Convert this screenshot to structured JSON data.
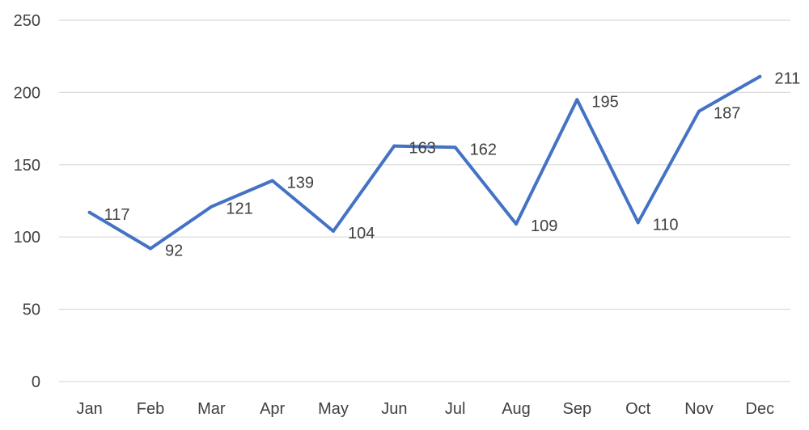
{
  "chart_data": {
    "type": "line",
    "title": "",
    "xlabel": "",
    "ylabel": "",
    "categories": [
      "Jan",
      "Feb",
      "Mar",
      "Apr",
      "May",
      "Jun",
      "Jul",
      "Aug",
      "Sep",
      "Oct",
      "Nov",
      "Dec"
    ],
    "series": [
      {
        "values": [
          117,
          92,
          121,
          139,
          104,
          163,
          162,
          109,
          195,
          110,
          187,
          211
        ],
        "color": "#4472c4"
      }
    ],
    "ylim": [
      0,
      250
    ],
    "yticks": [
      0,
      50,
      100,
      150,
      200,
      250
    ],
    "grid": true,
    "legend": "none",
    "data_labels": true
  }
}
